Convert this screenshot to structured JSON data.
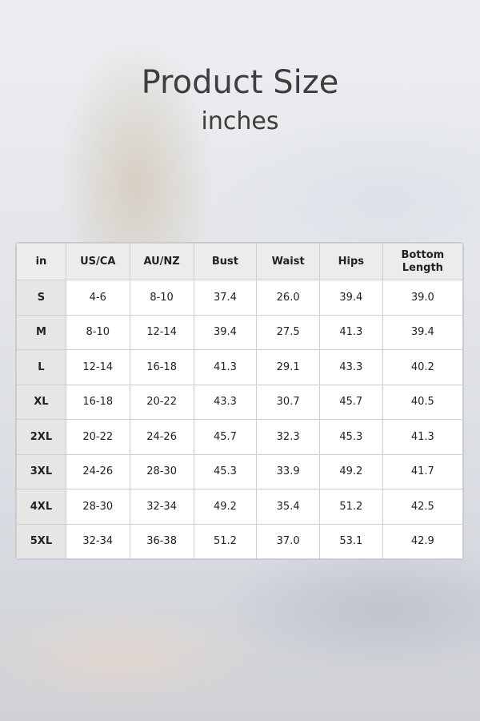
{
  "header": {
    "title": "Product Size",
    "subtitle": "inches"
  },
  "table": {
    "columns": [
      "in",
      "US/CA",
      "AU/NZ",
      "Bust",
      "Waist",
      "Hips",
      "Bottom Length"
    ],
    "rows": [
      [
        "S",
        "4-6",
        "8-10",
        "37.4",
        "26.0",
        "39.4",
        "39.0"
      ],
      [
        "M",
        "8-10",
        "12-14",
        "39.4",
        "27.5",
        "41.3",
        "39.4"
      ],
      [
        "L",
        "12-14",
        "16-18",
        "41.3",
        "29.1",
        "43.3",
        "40.2"
      ],
      [
        "XL",
        "16-18",
        "20-22",
        "43.3",
        "30.7",
        "45.7",
        "40.5"
      ],
      [
        "2XL",
        "20-22",
        "24-26",
        "45.7",
        "32.3",
        "45.3",
        "41.3"
      ],
      [
        "3XL",
        "24-26",
        "28-30",
        "45.3",
        "33.9",
        "49.2",
        "41.7"
      ],
      [
        "4XL",
        "28-30",
        "32-34",
        "49.2",
        "35.4",
        "51.2",
        "42.5"
      ],
      [
        "5XL",
        "32-34",
        "36-38",
        "51.2",
        "37.0",
        "53.1",
        "42.9"
      ]
    ]
  }
}
